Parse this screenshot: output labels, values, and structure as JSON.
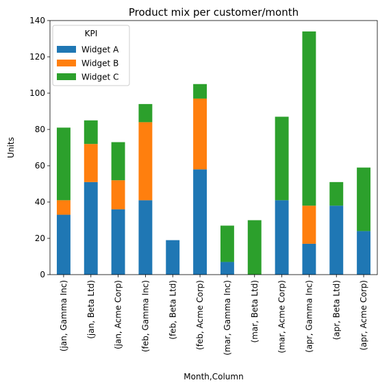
{
  "chart_data": {
    "type": "bar",
    "stacked": true,
    "title": "Product mix per customer/month",
    "xlabel": "Month,Column",
    "ylabel": "Units",
    "ylim": [
      0,
      140
    ],
    "yticks": [
      0,
      20,
      40,
      60,
      80,
      100,
      120,
      140
    ],
    "categories": [
      "(jan, Gamma Inc)",
      "(jan, Beta Ltd)",
      "(jan, Acme Corp)",
      "(feb, Gamma Inc)",
      "(feb, Beta Ltd)",
      "(feb, Acme Corp)",
      "(mar, Gamma Inc)",
      "(mar, Beta Ltd)",
      "(mar, Acme Corp)",
      "(apr, Gamma Inc)",
      "(apr, Beta Ltd)",
      "(apr, Acme Corp)"
    ],
    "series": [
      {
        "name": "Widget A",
        "color": "#1f77b4",
        "values": [
          33,
          51,
          36,
          41,
          19,
          58,
          7,
          0,
          41,
          17,
          38,
          24
        ]
      },
      {
        "name": "Widget B",
        "color": "#ff7f0e",
        "values": [
          8,
          21,
          16,
          43,
          0,
          39,
          0,
          0,
          0,
          21,
          0,
          0
        ]
      },
      {
        "name": "Widget C",
        "color": "#2ca02c",
        "values": [
          40,
          13,
          21,
          10,
          0,
          8,
          20,
          30,
          46,
          96,
          13,
          35
        ]
      }
    ],
    "legend": {
      "title": "KPI",
      "position": "top-left"
    },
    "grid": false
  }
}
